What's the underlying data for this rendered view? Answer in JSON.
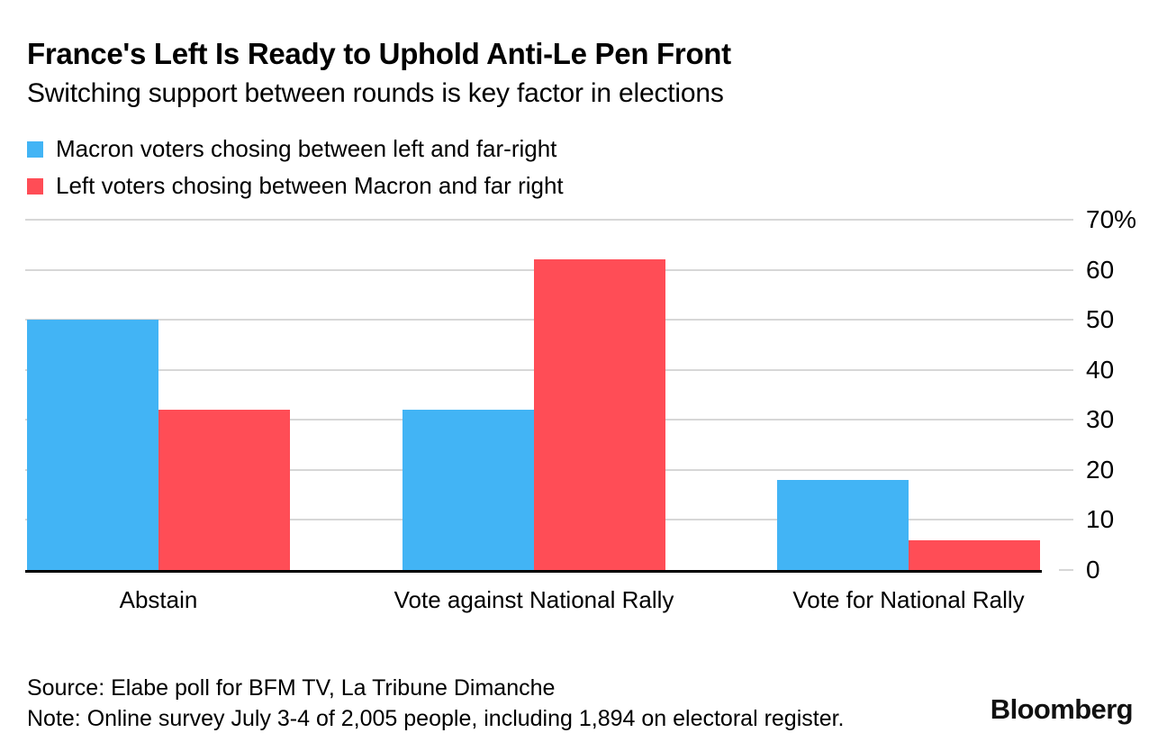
{
  "header": {
    "title": "France's Left Is Ready to Uphold Anti-Le Pen Front",
    "subtitle": "Switching support between rounds is key factor in elections"
  },
  "chart_data": {
    "type": "bar",
    "categories": [
      "Abstain",
      "Vote against National Rally",
      "Vote for National Rally"
    ],
    "series": [
      {
        "name": "Macron voters chosing between left and far-right",
        "color": "#42b4f5",
        "values": [
          50,
          32,
          18
        ]
      },
      {
        "name": "Left voters chosing between Macron and far right",
        "color": "#ff4d56",
        "values": [
          32,
          62,
          6
        ]
      }
    ],
    "ylim": [
      0,
      70
    ],
    "yticks": [
      {
        "value": 70,
        "label": "70%"
      },
      {
        "value": 60,
        "label": "60"
      },
      {
        "value": 50,
        "label": "50"
      },
      {
        "value": 40,
        "label": "40"
      },
      {
        "value": 30,
        "label": "30"
      },
      {
        "value": 20,
        "label": "20"
      },
      {
        "value": 10,
        "label": "10"
      },
      {
        "value": 0,
        "label": "0"
      }
    ],
    "unit": "%",
    "grid": "horizontal",
    "legend_position": "top-left",
    "colors": {
      "grid": "#d7d7d7",
      "axis": "#000000",
      "text": "#000000"
    }
  },
  "footer": {
    "source": "Source: Elabe poll for BFM TV, La Tribune Dimanche",
    "note": "Note: Online survey July 3-4 of 2,005 people, including 1,894 on electoral register.",
    "brand": "Bloomberg"
  }
}
